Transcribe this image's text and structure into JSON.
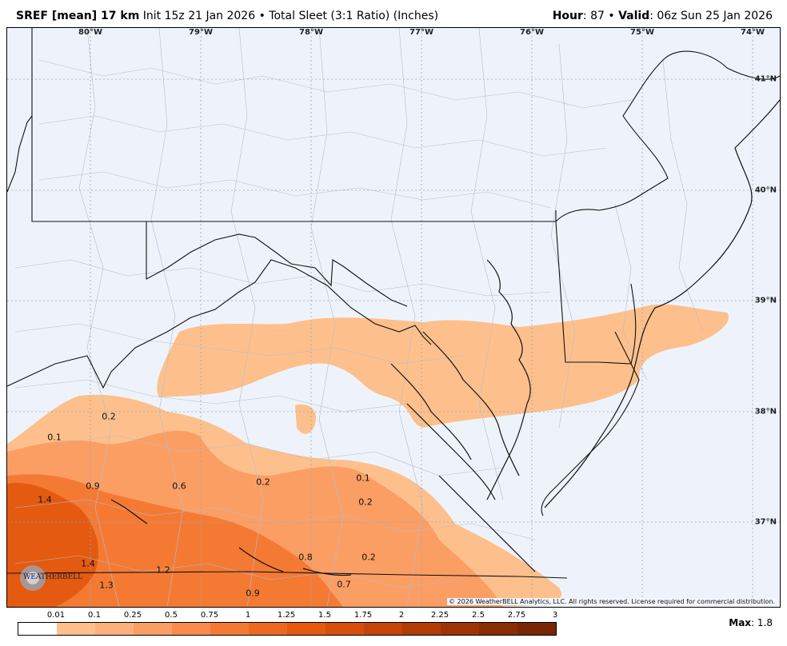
{
  "header": {
    "model": "SREF [mean] 17 km",
    "init": "Init 15z 21 Jan 2026",
    "bullet": "•",
    "product": "Total Sleet (3:1 Ratio) (Inches)",
    "hour_label": "Hour",
    "hour_value": ": 87",
    "valid_label": "Valid",
    "valid_value": ": 06z Sun 25 Jan 2026"
  },
  "map": {
    "background": "#eef3fb",
    "longitudes": [
      "80°W",
      "79°W",
      "78°W",
      "77°W",
      "76°W",
      "75°W",
      "74°W"
    ],
    "latitudes": [
      "41°N",
      "40°N",
      "39°N",
      "38°N",
      "37°N"
    ],
    "value_labels": [
      "0.2",
      "0.1",
      "1.4",
      "0.9",
      "0.6",
      "0.2",
      "0.1",
      "0.2",
      "1.4",
      "1.2",
      "1.3",
      "0.8",
      "0.2",
      "0.9",
      "0.7"
    ],
    "copyright": "© 2026 WeatherBELL Analytics, LLC. All rights reserved. License required for commercial distribution.",
    "logo_text": "WEATHERBELL"
  },
  "colorbar": {
    "labels": [
      "0.01",
      "0.1",
      "0.25",
      "0.5",
      "0.75",
      "1",
      "1.25",
      "1.5",
      "1.75",
      "2",
      "2.25",
      "2.5",
      "2.75",
      "3"
    ],
    "colors": [
      "#ffffff",
      "#fdc08c",
      "#fdb07c",
      "#fb9e64",
      "#f98c4c",
      "#f47a34",
      "#ec6a20",
      "#e35a10",
      "#d64e0a",
      "#c54408",
      "#b23c06",
      "#9e3406",
      "#8a2c04",
      "#7a2604"
    ]
  },
  "max": {
    "label": "Max",
    "value": ": 1.8"
  }
}
